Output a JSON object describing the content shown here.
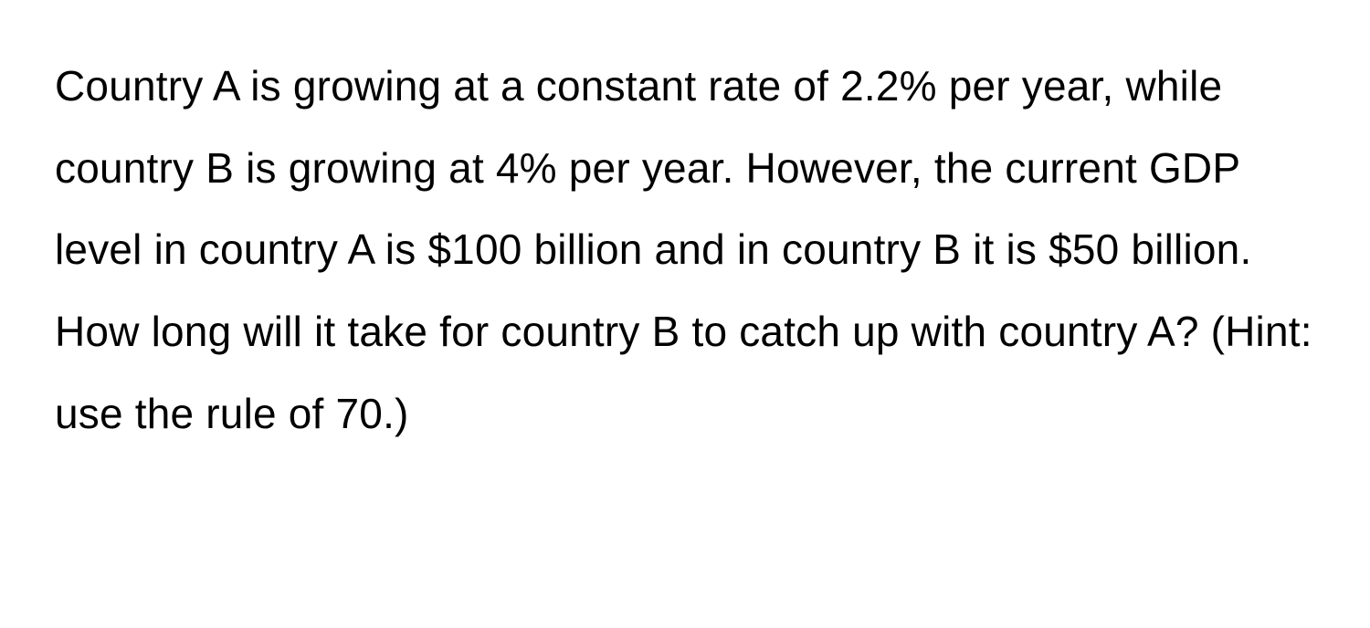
{
  "document": {
    "text": "Country A is growing at a constant rate of 2.2% per year, while country B is growing at 4% per year. However, the current GDP level in country A is $100 billion and in country B it is $50 billion. How long will it take for country B to catch up with country A? (Hint: use the rule of 70.)",
    "text_color": "#000000",
    "background_color": "#ffffff",
    "font_size": 46,
    "line_height": 1.95,
    "font_weight": 400
  }
}
